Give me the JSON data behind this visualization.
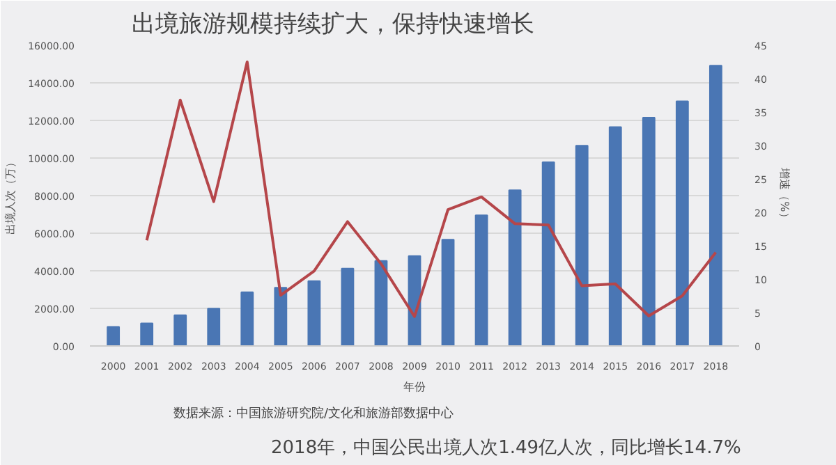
{
  "chart_data": {
    "type": "bar",
    "title": "出境旅游规模持续扩大，保持快速增长",
    "xlabel": "年份",
    "ylabel": "出境人次（万）",
    "y2label": "增速（%）",
    "categories": [
      "2000",
      "2001",
      "2002",
      "2003",
      "2004",
      "2005",
      "2006",
      "2007",
      "2008",
      "2009",
      "2010",
      "2011",
      "2012",
      "2013",
      "2014",
      "2015",
      "2016",
      "2017",
      "2018"
    ],
    "series": [
      {
        "color": "#4a76b4",
        "values": [
          1020,
          1200,
          1640,
          1990,
          2860,
          3100,
          3450,
          4120,
          4530,
          4790,
          5660,
          6950,
          8290,
          9780,
          10660,
          11650,
          12150,
          13020,
          14920
        ]
      },
      {
        "type": "line",
        "axis": "y2",
        "color": "#b5464a",
        "values": [
          null,
          15.8,
          36.8,
          21.6,
          42.5,
          7.6,
          11.2,
          18.6,
          12.3,
          4.4,
          20.4,
          22.3,
          18.3,
          18.1,
          9.0,
          9.3,
          4.5,
          7.5,
          14.0
        ]
      }
    ],
    "ylim": [
      0,
      16000
    ],
    "yticks": [
      {
        "value": 0,
        "label": "0.00"
      },
      {
        "value": 2000,
        "label": "2000.00"
      },
      {
        "value": 4000,
        "label": "4000.00"
      },
      {
        "value": 6000,
        "label": "6000.00"
      },
      {
        "value": 8000,
        "label": "8000.00"
      },
      {
        "value": 10000,
        "label": "10000.00"
      },
      {
        "value": 12000,
        "label": "12000.00"
      },
      {
        "value": 14000,
        "label": "14000.00"
      },
      {
        "value": 16000,
        "label": "16000.00"
      }
    ],
    "y2lim": [
      0,
      45
    ],
    "y2ticks": [
      0,
      5,
      10,
      15,
      20,
      25,
      30,
      35,
      40,
      45
    ],
    "grid": "y",
    "annotations": [
      "数据来源：中国旅游研究院/文化和旅游部数据中心",
      "2018年，中国公民出境人次1.49亿人次，同比增长14.7%"
    ]
  }
}
